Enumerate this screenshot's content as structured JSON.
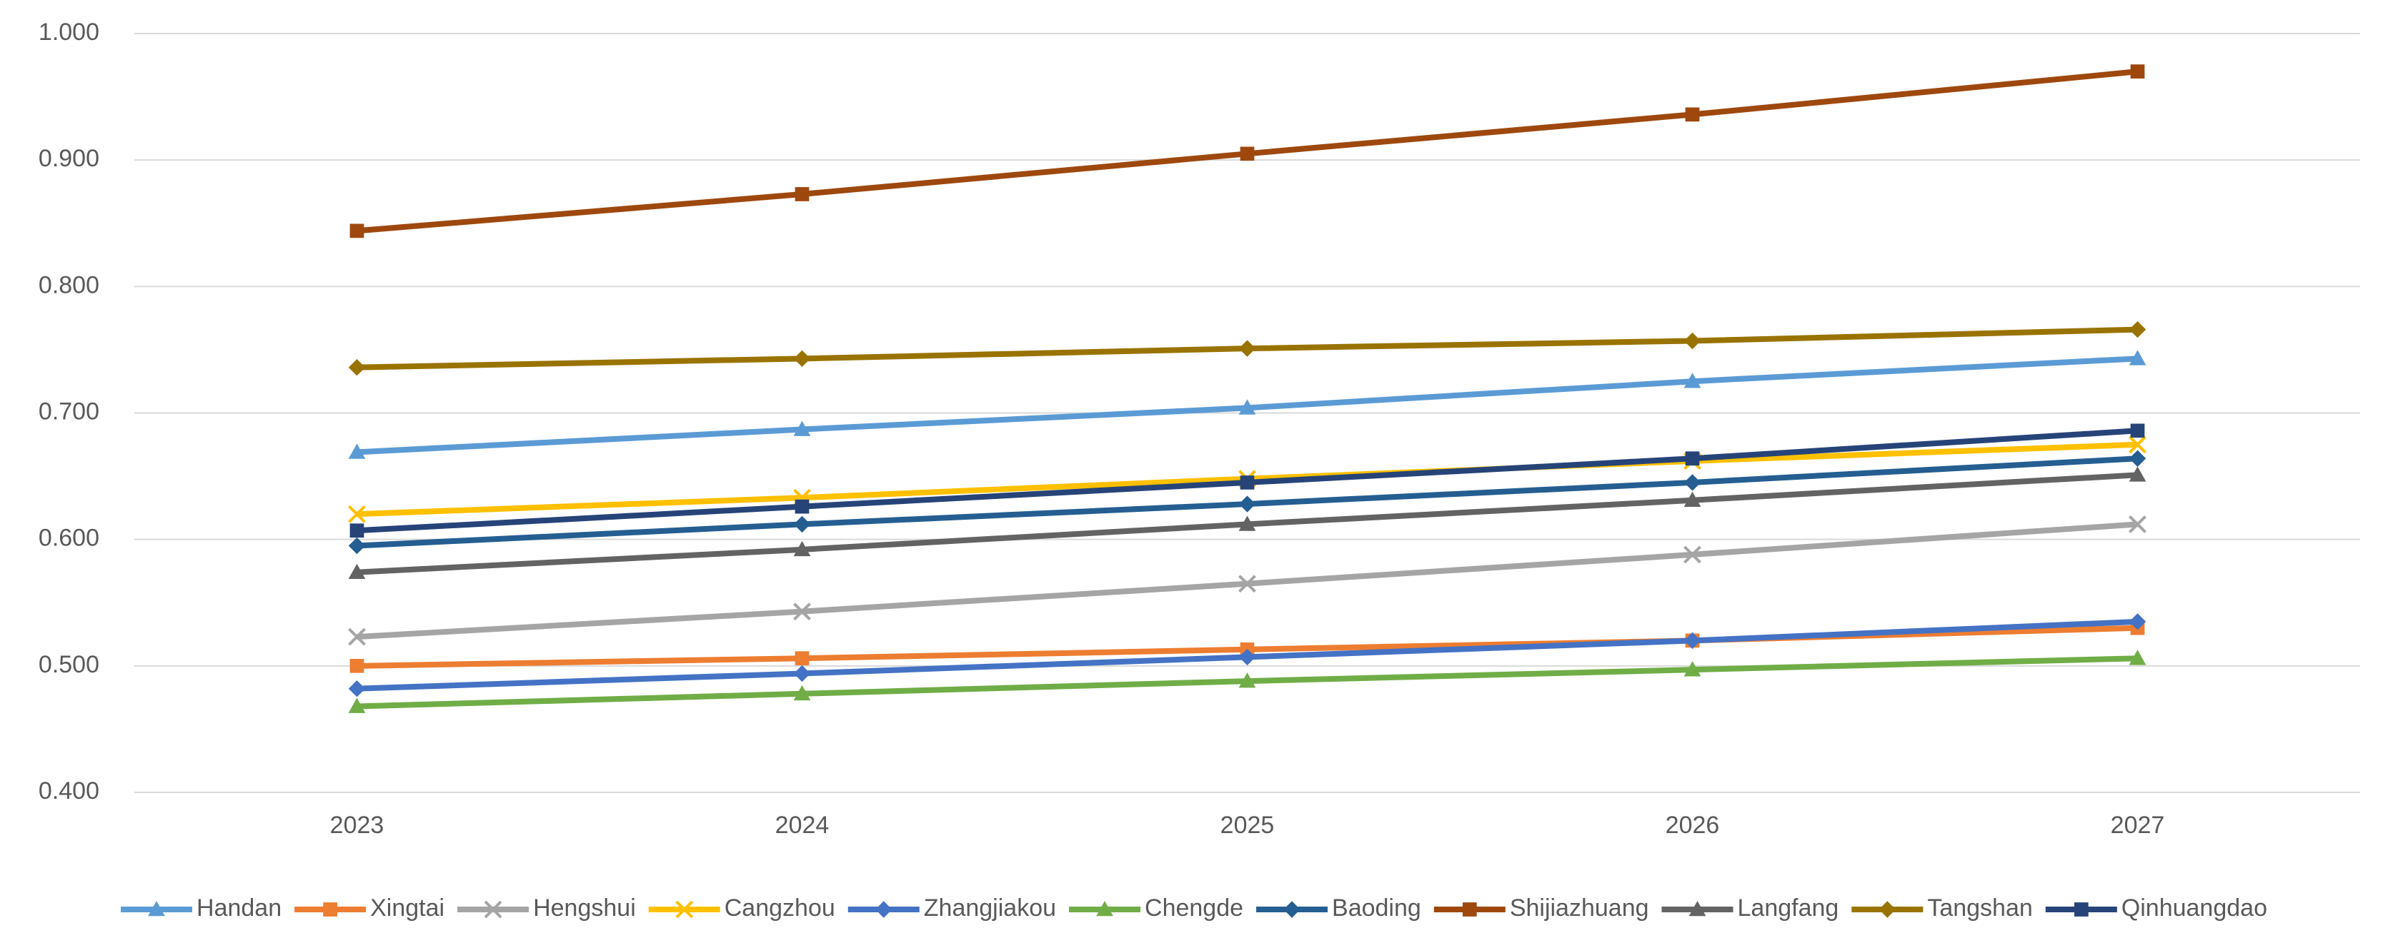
{
  "chart_data": {
    "type": "line",
    "categories": [
      "2023",
      "2024",
      "2025",
      "2026",
      "2027"
    ],
    "ylim": [
      0.4,
      1.0
    ],
    "yticks": [
      {
        "value": 0.4,
        "label": "0.400"
      },
      {
        "value": 0.5,
        "label": "0.500"
      },
      {
        "value": 0.6,
        "label": "0.600"
      },
      {
        "value": 0.7,
        "label": "0.700"
      },
      {
        "value": 0.8,
        "label": "0.800"
      },
      {
        "value": 0.9,
        "label": "0.900"
      },
      {
        "value": 1.0,
        "label": "1.000"
      }
    ],
    "grid": true,
    "legend": "bottom",
    "series": [
      {
        "name": "Handan",
        "color": "#5b9bd5",
        "marker": "triangle",
        "values": [
          0.669,
          0.687,
          0.704,
          0.725,
          0.743
        ]
      },
      {
        "name": "Xingtai",
        "color": "#ed7d31",
        "marker": "square",
        "values": [
          0.5,
          0.506,
          0.513,
          0.52,
          0.53
        ]
      },
      {
        "name": "Hengshui",
        "color": "#a5a5a5",
        "marker": "x",
        "values": [
          0.523,
          0.543,
          0.565,
          0.588,
          0.612
        ]
      },
      {
        "name": "Cangzhou",
        "color": "#ffc000",
        "marker": "x",
        "values": [
          0.62,
          0.633,
          0.648,
          0.662,
          0.675
        ]
      },
      {
        "name": "Zhangjiakou",
        "color": "#4472c4",
        "marker": "diamond",
        "values": [
          0.482,
          0.494,
          0.507,
          0.52,
          0.535
        ]
      },
      {
        "name": "Chengde",
        "color": "#70ad47",
        "marker": "triangle",
        "values": [
          0.468,
          0.478,
          0.488,
          0.497,
          0.506
        ]
      },
      {
        "name": "Baoding",
        "color": "#255e91",
        "marker": "diamond",
        "values": [
          0.595,
          0.612,
          0.628,
          0.645,
          0.664
        ]
      },
      {
        "name": "Shijiazhuang",
        "color": "#9e480e",
        "marker": "square",
        "values": [
          0.844,
          0.873,
          0.905,
          0.936,
          0.97
        ]
      },
      {
        "name": "Langfang",
        "color": "#636363",
        "marker": "triangle",
        "values": [
          0.574,
          0.592,
          0.612,
          0.631,
          0.651
        ]
      },
      {
        "name": "Tangshan",
        "color": "#997300",
        "marker": "diamond",
        "values": [
          0.736,
          0.743,
          0.751,
          0.757,
          0.766
        ]
      },
      {
        "name": "Qinhuangdao",
        "color": "#264478",
        "marker": "square",
        "values": [
          0.607,
          0.626,
          0.645,
          0.664,
          0.686
        ]
      }
    ]
  }
}
